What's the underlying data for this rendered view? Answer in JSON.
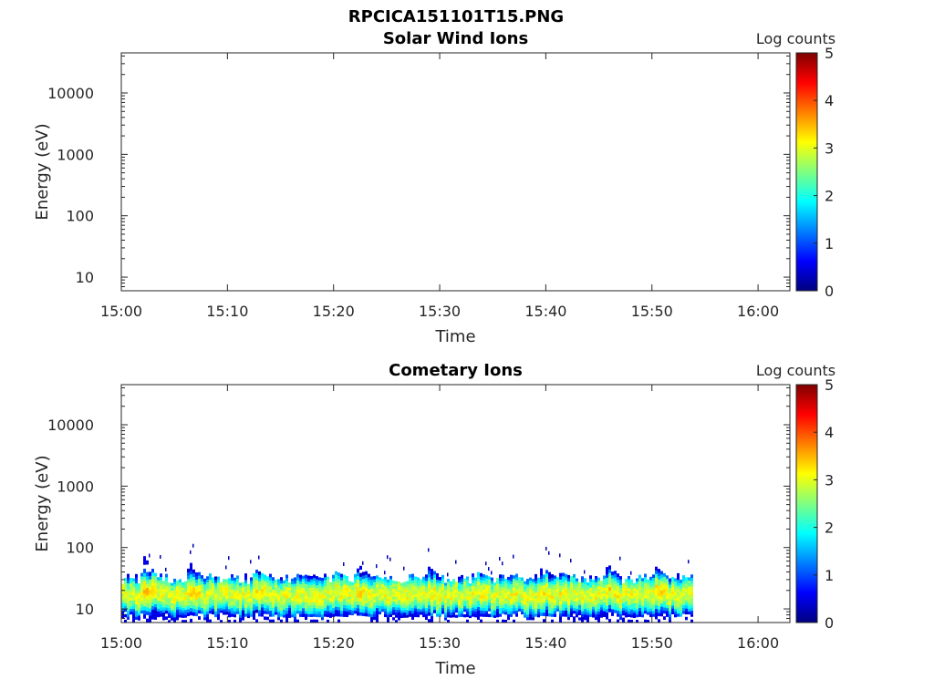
{
  "figure_title": "RPCICA151101T15.PNG",
  "chart_data": [
    {
      "type": "heatmap",
      "title": "Solar Wind Ions",
      "xlabel": "Time",
      "ylabel": "Energy (eV)",
      "x_ticks": [
        "15:00",
        "15:10",
        "15:20",
        "15:30",
        "15:40",
        "15:50",
        "16:00"
      ],
      "xlim": [
        "15:00",
        "16:03"
      ],
      "y_scale": "log",
      "y_ticks": [
        10,
        100,
        1000,
        10000
      ],
      "ylim": [
        6,
        45000
      ],
      "colorbar": {
        "label": "Log counts",
        "ticks": [
          0,
          1,
          2,
          3,
          4,
          5
        ],
        "range": [
          0,
          5
        ],
        "colormap": "jet"
      },
      "data_segments": [],
      "bursts": []
    },
    {
      "type": "heatmap",
      "title": "Cometary Ions",
      "xlabel": "Time",
      "ylabel": "Energy (eV)",
      "x_ticks": [
        "15:00",
        "15:10",
        "15:20",
        "15:30",
        "15:40",
        "15:50",
        "16:00"
      ],
      "xlim": [
        "15:00",
        "16:03"
      ],
      "y_scale": "log",
      "y_ticks": [
        10,
        100,
        1000,
        10000
      ],
      "ylim": [
        6,
        45000
      ],
      "colorbar": {
        "label": "Log counts",
        "ticks": [
          0,
          1,
          2,
          3,
          4,
          5
        ],
        "range": [
          0,
          5
        ],
        "colormap": "jet"
      },
      "data_segments": [
        {
          "start": "15:00",
          "end": "15:53.8",
          "energy_min_eV": 6,
          "energy_max_eV": 32,
          "peak_energy_eV": 17,
          "peak_log_counts": 3.0
        }
      ],
      "bursts": [
        {
          "time": "15:02.0",
          "energy_max_eV": 75,
          "peak_log_counts": 3.4
        },
        {
          "time": "15:06.3",
          "energy_max_eV": 60,
          "peak_log_counts": 2.9
        },
        {
          "time": "15:12.5",
          "energy_max_eV": 45,
          "peak_log_counts": 2.8
        },
        {
          "time": "15:16.3",
          "energy_max_eV": 38,
          "peak_log_counts": 2.5
        },
        {
          "time": "15:17.5",
          "energy_max_eV": 35,
          "peak_log_counts": 2.5
        },
        {
          "time": "15:20.0",
          "energy_max_eV": 42,
          "peak_log_counts": 2.8
        },
        {
          "time": "15:22.2",
          "energy_max_eV": 55,
          "peak_log_counts": 2.9
        },
        {
          "time": "15:28.8",
          "energy_max_eV": 50,
          "peak_log_counts": 2.8
        },
        {
          "time": "15:33.5",
          "energy_max_eV": 40,
          "peak_log_counts": 2.7
        },
        {
          "time": "15:36.5",
          "energy_max_eV": 35,
          "peak_log_counts": 2.6
        },
        {
          "time": "15:39.5",
          "energy_max_eV": 50,
          "peak_log_counts": 2.8
        },
        {
          "time": "15:41.3",
          "energy_max_eV": 40,
          "peak_log_counts": 2.7
        },
        {
          "time": "15:45.7",
          "energy_max_eV": 55,
          "peak_log_counts": 2.9
        },
        {
          "time": "15:50.2",
          "energy_max_eV": 50,
          "peak_log_counts": 3.0
        }
      ]
    }
  ]
}
